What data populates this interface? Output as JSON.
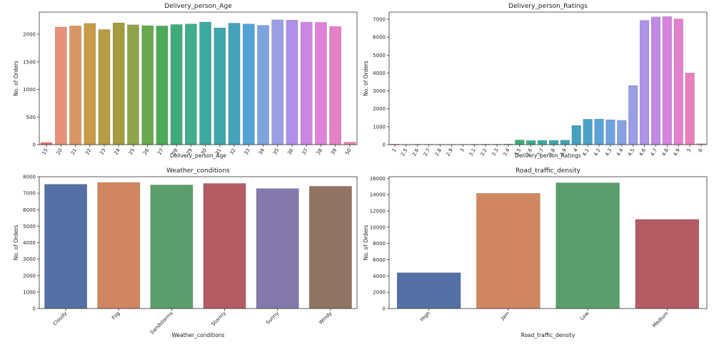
{
  "chart_data": [
    {
      "type": "bar",
      "title": "Delivery_person_Age",
      "xlabel": "Delivery_person_Age",
      "ylabel": "No. of Orders",
      "ylim": [
        0,
        2400
      ],
      "yticks": [
        0,
        500,
        1000,
        1500,
        2000
      ],
      "categories": [
        "15",
        "20",
        "21",
        "22",
        "23",
        "24",
        "25",
        "26",
        "27",
        "28",
        "29",
        "30",
        "31",
        "32",
        "33",
        "34",
        "35",
        "36",
        "37",
        "38",
        "39",
        "50"
      ],
      "values": [
        38,
        2130,
        2150,
        2195,
        2085,
        2205,
        2170,
        2155,
        2150,
        2175,
        2185,
        2220,
        2115,
        2200,
        2185,
        2160,
        2260,
        2255,
        2220,
        2215,
        2140,
        45
      ],
      "colors": [
        "#e8726a",
        "#e8917a",
        "#d89665",
        "#c79b48",
        "#b79c45",
        "#a49c3e",
        "#8ea34a",
        "#6aa84f",
        "#4daa58",
        "#3fab78",
        "#3fad8e",
        "#3ea99f",
        "#3fa6ab",
        "#43a3ba",
        "#52a3d4",
        "#7fa3de",
        "#9a9fe5",
        "#b08eea",
        "#c987e3",
        "#df82d7",
        "#e580c6",
        "#ea7dad"
      ],
      "grid": false
    },
    {
      "type": "bar",
      "title": "Delivery_person_Ratings",
      "xlabel": "Delivery_person_Ratings",
      "ylabel": "No. of Orders",
      "ylim": [
        0,
        7400
      ],
      "yticks": [
        0,
        1000,
        2000,
        3000,
        4000,
        5000,
        6000,
        7000
      ],
      "categories": [
        "1",
        "2.5",
        "2.6",
        "2.7",
        "2.8",
        "2.9",
        "3",
        "3.1",
        "3.2",
        "3.3",
        "3.4",
        "3.5",
        "3.6",
        "3.7",
        "3.8",
        "3.9",
        "4",
        "4.1",
        "4.2",
        "4.3",
        "4.4",
        "4.5",
        "4.6",
        "4.7",
        "4.8",
        "4.9",
        "5",
        "6"
      ],
      "values": [
        30,
        20,
        22,
        22,
        20,
        20,
        18,
        22,
        25,
        22,
        30,
        260,
        230,
        240,
        240,
        250,
        1070,
        1420,
        1430,
        1390,
        1360,
        3300,
        6940,
        7130,
        7150,
        7020,
        4000,
        50
      ],
      "colors": [
        "#e8726a",
        "#e88368",
        "#db9352",
        "#cf9a48",
        "#c09c44",
        "#b09d40",
        "#a29d3f",
        "#909f45",
        "#78a44c",
        "#5aa84f",
        "#45ab5d",
        "#3eab7a",
        "#3eac8d",
        "#3eaa9b",
        "#3fa8a6",
        "#3fa4b0",
        "#43a2bd",
        "#4ba1ca",
        "#5ba2d8",
        "#70a2df",
        "#86a1e2",
        "#9a9ee6",
        "#ad93e9",
        "#c08ae6",
        "#d584dd",
        "#e381cf",
        "#e97fbb",
        "#eb7ba6"
      ],
      "grid": false
    },
    {
      "type": "bar",
      "title": "Weather_conditions",
      "xlabel": "Weather_conditions",
      "ylabel": "No. of Orders",
      "ylim": [
        0,
        8000
      ],
      "yticks": [
        0,
        1000,
        2000,
        3000,
        4000,
        5000,
        6000,
        7000,
        8000
      ],
      "categories": [
        "Cloudy",
        "Fog",
        "Sandstorms",
        "Stormy",
        "Sunny",
        "Windy"
      ],
      "values": [
        7540,
        7650,
        7500,
        7590,
        7280,
        7420
      ],
      "colors": [
        "#5470a4",
        "#d0875f",
        "#5a9e6c",
        "#b45c63",
        "#8379ad",
        "#917461"
      ],
      "grid": false
    },
    {
      "type": "bar",
      "title": "Road_traffic_density",
      "xlabel": "Road_traffic_density",
      "ylabel": "No. of Orders",
      "ylim": [
        0,
        16200
      ],
      "yticks": [
        0,
        2000,
        4000,
        6000,
        8000,
        10000,
        12000,
        14000,
        16000
      ],
      "categories": [
        "High",
        "Jam",
        "Low",
        "Medium"
      ],
      "values": [
        4400,
        14150,
        15450,
        10950
      ],
      "colors": [
        "#5470a4",
        "#d0875f",
        "#5a9e6c",
        "#b45c63"
      ],
      "grid": false
    }
  ]
}
